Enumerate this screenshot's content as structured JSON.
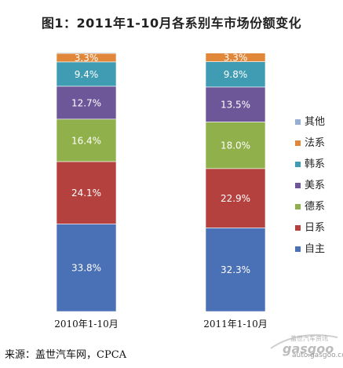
{
  "chart_data": {
    "type": "bar",
    "stacked": true,
    "normalized": true,
    "title": "图1：2011年1-10月各系别车市场份额变化",
    "categories": [
      "2010年1-10月",
      "2011年1-10月"
    ],
    "series": [
      {
        "name": "自主",
        "color": "#4a70b5",
        "values": [
          33.8,
          32.3
        ]
      },
      {
        "name": "日系",
        "color": "#b5413e",
        "values": [
          24.1,
          22.9
        ]
      },
      {
        "name": "德系",
        "color": "#8fb04a",
        "values": [
          16.4,
          18.0
        ]
      },
      {
        "name": "美系",
        "color": "#6e5799",
        "values": [
          12.7,
          13.5
        ]
      },
      {
        "name": "韩系",
        "color": "#3f9cb2",
        "values": [
          9.4,
          9.8
        ]
      },
      {
        "name": "法系",
        "color": "#e0873a",
        "values": [
          3.3,
          3.3
        ]
      },
      {
        "name": "其他",
        "color": "#93afd4",
        "values": [
          0.3,
          0.2
        ]
      }
    ],
    "data_label_format": "{v}%",
    "legend": "right",
    "grid": false
  },
  "source_text": "来源：盖世汽车网，CPCA",
  "watermark": {
    "logo_icon": "gasgoo-logo-icon",
    "logo_text": "gasgoo",
    "tagline": "盖世汽车资讯",
    "url": "auto.gasgoo.com"
  }
}
